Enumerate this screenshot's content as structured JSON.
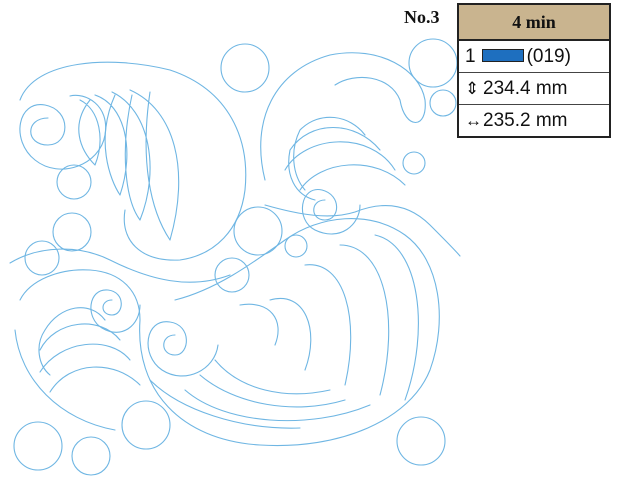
{
  "design": {
    "number": "No.3"
  },
  "info_panel": {
    "stitch_time": "4 min",
    "colors": [
      {
        "index": "1",
        "code": "(019)",
        "swatch": "#1e6fbf"
      }
    ],
    "height": "234.4 mm",
    "width": "235.2 mm",
    "height_icon": "vertical-double-arrow-icon",
    "width_icon": "horizontal-double-arrow-icon"
  },
  "stitch_color": "#6fb6e3"
}
